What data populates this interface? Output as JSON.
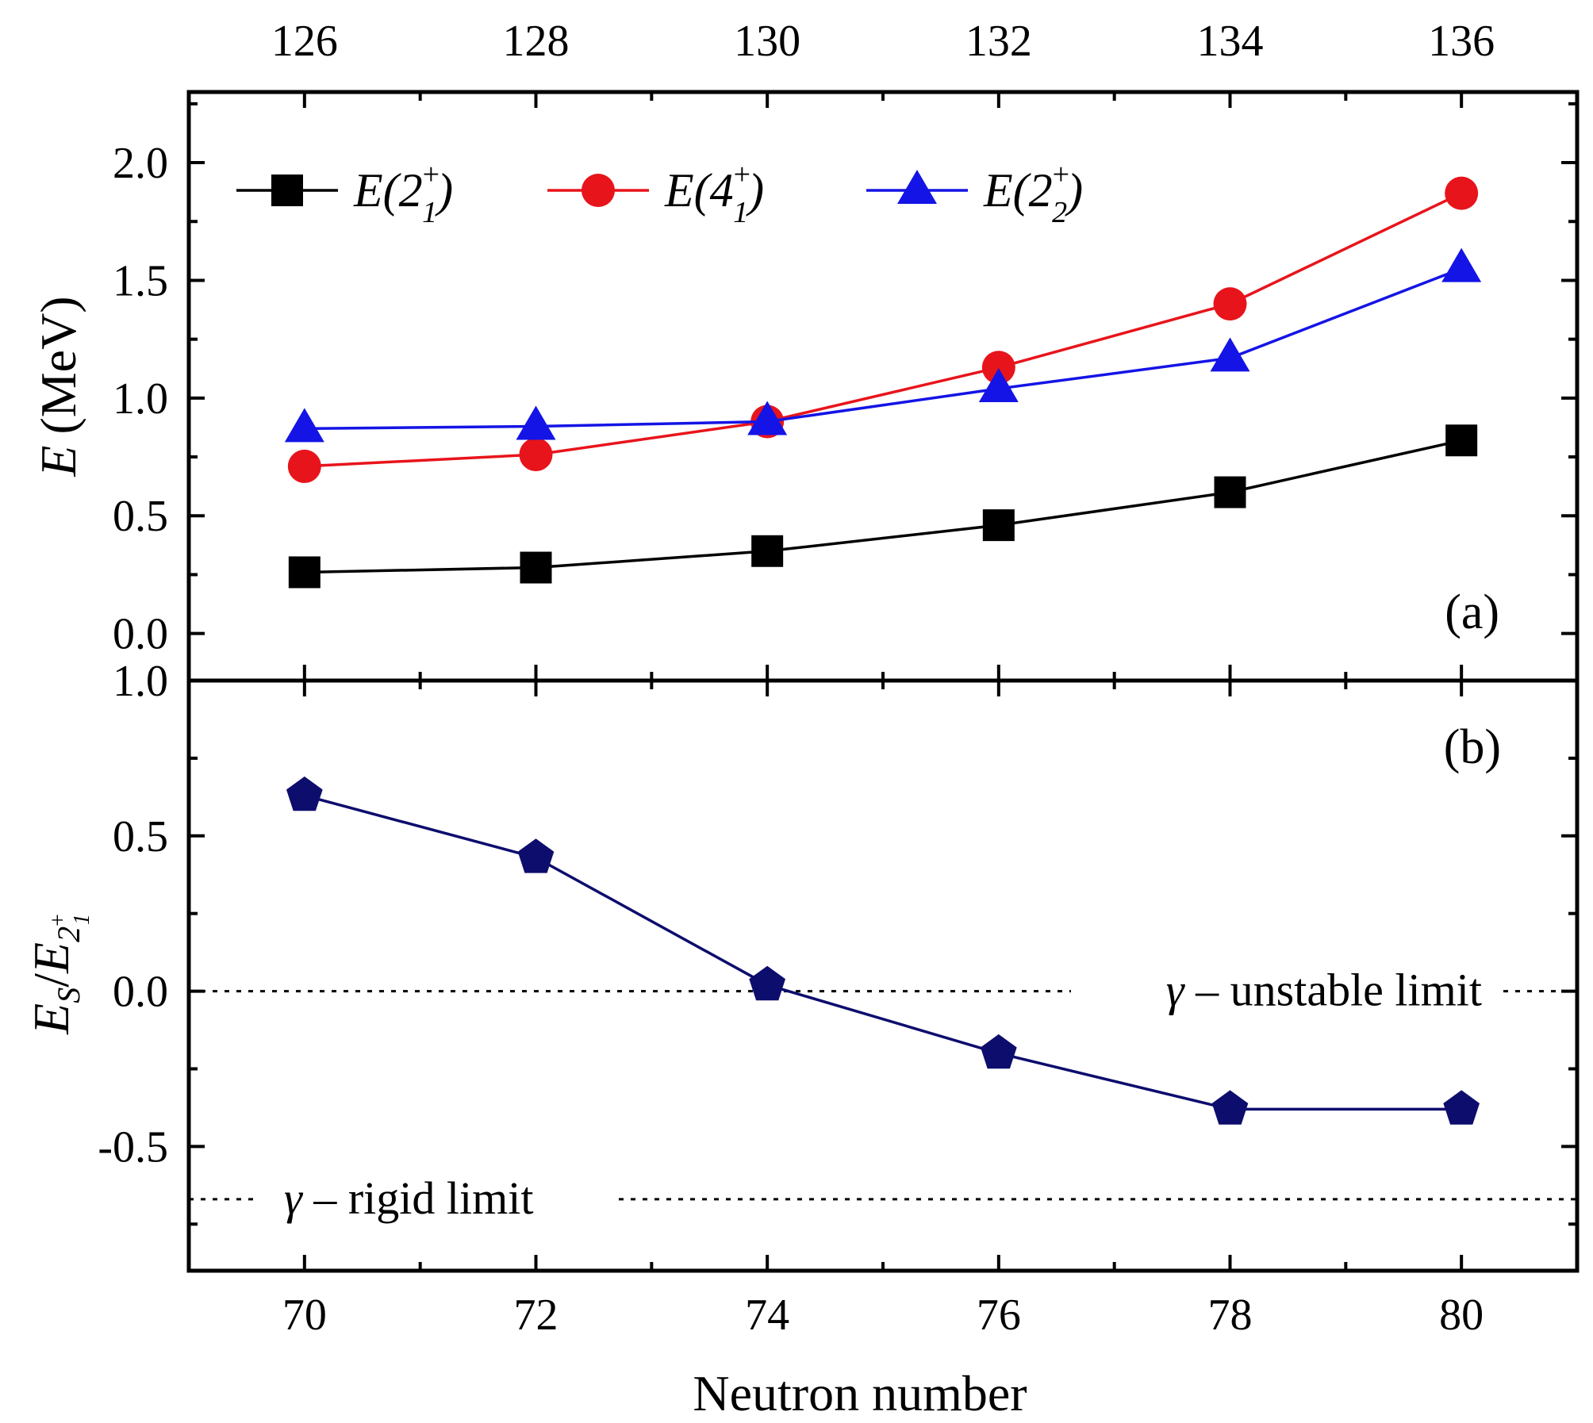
{
  "chart_data": [
    {
      "panel": "(a)",
      "type": "line",
      "xlabel": "",
      "ylabel": "E (MeV)",
      "ylabel_parts": {
        "var": "E",
        "unit": "(MeV)"
      },
      "xlim": [
        69,
        81
      ],
      "ylim": [
        -0.2,
        2.3
      ],
      "x_ticks": [
        70,
        72,
        74,
        76,
        78,
        80
      ],
      "y_ticks": [
        0.0,
        0.5,
        1.0,
        1.5,
        2.0
      ],
      "y_tick_labels": [
        "0.0",
        "0.5",
        "1.0",
        "1.5",
        "2.0"
      ],
      "top_axis": {
        "label": "",
        "ticks": [
          70,
          72,
          74,
          76,
          78,
          80
        ],
        "tick_labels": [
          "126",
          "128",
          "130",
          "132",
          "134",
          "136"
        ]
      },
      "grid": false,
      "legend": "top",
      "x": [
        70,
        72,
        74,
        76,
        78,
        80
      ],
      "series": [
        {
          "name": "E(2₁⁺)",
          "label": {
            "base": "E(2",
            "sup": "+",
            "sub": "1",
            "close": ")"
          },
          "marker": "square",
          "color": "#000000",
          "values": [
            0.26,
            0.28,
            0.35,
            0.46,
            0.6,
            0.82
          ]
        },
        {
          "name": "E(4₁⁺)",
          "label": {
            "base": "E(4",
            "sup": "+",
            "sub": "1",
            "close": ")"
          },
          "marker": "circle",
          "color": "#e8141b",
          "values": [
            0.71,
            0.76,
            0.9,
            1.13,
            1.4,
            1.87
          ]
        },
        {
          "name": "E(2₂⁺)",
          "label": {
            "base": "E(2",
            "sup": "+",
            "sub": "2",
            "close": ")"
          },
          "marker": "triangle",
          "color": "#1414e6",
          "values": [
            0.87,
            0.88,
            0.9,
            1.04,
            1.17,
            1.55
          ]
        }
      ]
    },
    {
      "panel": "(b)",
      "type": "line",
      "xlabel": "Neutron number",
      "ylabel": "E_S/E_{2₁⁺}",
      "ylabel_parts": {
        "a": "E",
        "a_sub": "S",
        "slash": "/",
        "b": "E",
        "b_sub": "2",
        "b_subsup": "+",
        "b_subsub": "1"
      },
      "xlim": [
        69,
        81
      ],
      "ylim": [
        -0.9,
        1.0
      ],
      "x_ticks": [
        70,
        72,
        74,
        76,
        78,
        80
      ],
      "x_tick_labels": [
        "70",
        "72",
        "74",
        "76",
        "78",
        "80"
      ],
      "y_ticks": [
        -0.5,
        0.0,
        0.5,
        1.0
      ],
      "y_tick_labels": [
        "-0.5",
        "0.0",
        "0.5",
        "1.0"
      ],
      "grid": false,
      "x": [
        70,
        72,
        74,
        76,
        78,
        80
      ],
      "series": [
        {
          "name": "",
          "marker": "pentagon",
          "color": "#0d0d6e",
          "values": [
            0.63,
            0.43,
            0.02,
            -0.2,
            -0.38,
            -0.38
          ]
        }
      ],
      "reference_lines": [
        {
          "y": 0.0,
          "label": "γ – unstable limit",
          "parts": {
            "g": "γ",
            "rest": " – unstable limit"
          }
        },
        {
          "y": -0.67,
          "label": "γ – rigid limit",
          "parts": {
            "g": "γ",
            "rest": " – rigid limit"
          }
        }
      ]
    }
  ]
}
